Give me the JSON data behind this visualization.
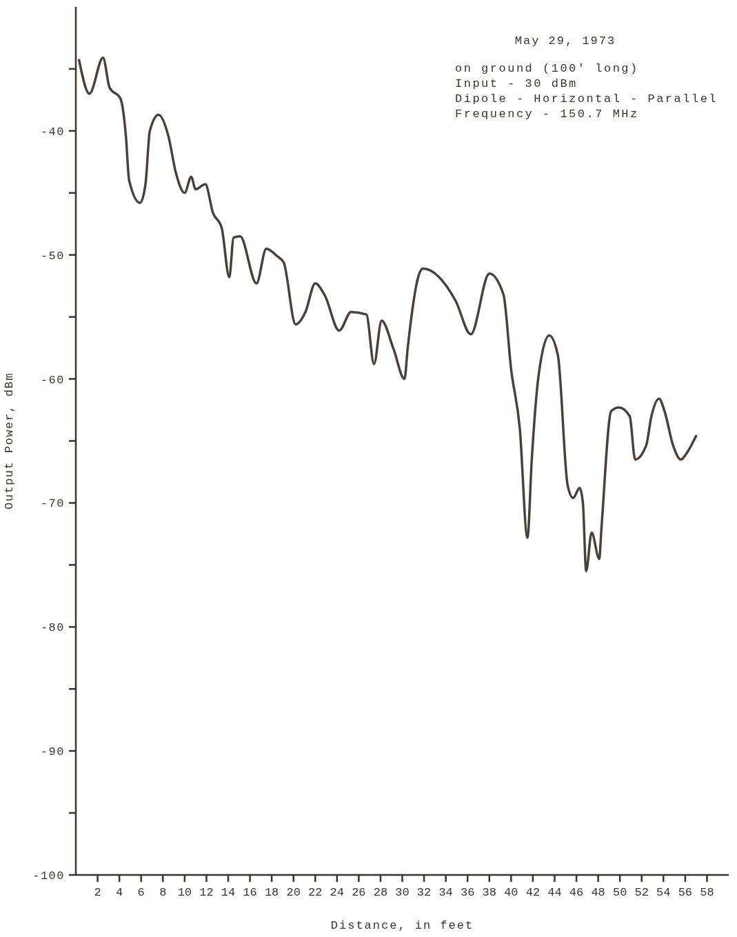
{
  "chart_data": {
    "type": "line",
    "title": "May 29, 1973",
    "annotations": [
      "on ground (100' long)",
      "Input - 30 dBm",
      "Dipole - Horizontal - Parallel",
      "Frequency - 150.7 MHz"
    ],
    "xlabel": "Distance, in feet",
    "ylabel": "Output Power, dBm",
    "x": [
      0.3,
      1.25,
      2.5,
      3.1,
      4.1,
      4.6,
      4.9,
      5.9,
      6.4,
      6.8,
      7.6,
      8.5,
      9.2,
      10.0,
      10.6,
      11.0,
      11.9,
      12.6,
      13.4,
      14.1,
      14.5,
      15.1,
      16.6,
      17.5,
      18.5,
      19.1,
      20.2,
      21.1,
      22.0,
      22.9,
      24.2,
      25.3,
      26.7,
      27.4,
      28.1,
      29.2,
      30.2,
      30.5,
      30.9,
      31.4,
      31.9,
      34.9,
      36.3,
      38.0,
      39.3,
      40.0,
      40.8,
      41.5,
      41.9,
      42.5,
      43.5,
      44.3,
      45.2,
      45.7,
      46.3,
      46.6,
      46.9,
      47.4,
      48.1,
      48.3,
      49.2,
      49.9,
      50.9,
      51.4,
      52.4,
      52.9,
      53.6,
      54.1,
      54.9,
      55.6,
      56.2,
      57.0
    ],
    "values": [
      -34.3,
      -37.0,
      -34.1,
      -36.5,
      -37.4,
      -40.4,
      -44.0,
      -45.8,
      -44.3,
      -40.0,
      -38.7,
      -40.4,
      -43.4,
      -45.0,
      -43.7,
      -44.7,
      -44.3,
      -46.6,
      -47.8,
      -51.8,
      -48.6,
      -48.5,
      -52.3,
      -49.5,
      -50.1,
      -50.6,
      -55.6,
      -54.6,
      -52.3,
      -53.3,
      -56.1,
      -54.6,
      -54.8,
      -58.8,
      -55.3,
      -57.6,
      -60.0,
      -57.5,
      -54.6,
      -52.0,
      -51.1,
      -53.7,
      -56.4,
      -51.5,
      -53.2,
      -59.2,
      -64.0,
      -72.8,
      -66.5,
      -59.9,
      -56.5,
      -58.1,
      -68.6,
      -69.6,
      -68.8,
      -70.0,
      -75.5,
      -72.4,
      -74.5,
      -72.1,
      -62.6,
      -62.3,
      -63.0,
      -66.5,
      -65.4,
      -63.0,
      -61.6,
      -62.6,
      -65.4,
      -66.5,
      -65.9,
      -64.6
    ],
    "color": "#4a403a",
    "marker": "none",
    "line_style": "solid",
    "xlim": [
      0,
      60
    ],
    "xticks": [
      2,
      4,
      6,
      8,
      10,
      12,
      14,
      16,
      18,
      20,
      22,
      24,
      26,
      28,
      30,
      32,
      34,
      36,
      38,
      40,
      42,
      44,
      46,
      48,
      50,
      52,
      54,
      56,
      58
    ],
    "ylim": [
      -100,
      -30
    ],
    "yticks": [
      {
        "value": -35,
        "label": null
      },
      -40,
      {
        "value": -45,
        "label": null
      },
      -50,
      {
        "value": -55,
        "label": null
      },
      -60,
      {
        "value": -65,
        "label": null
      },
      -70,
      {
        "value": -75,
        "label": null
      },
      -80,
      {
        "value": -85,
        "label": null
      },
      -90,
      {
        "value": -95,
        "label": null
      },
      -100
    ]
  }
}
